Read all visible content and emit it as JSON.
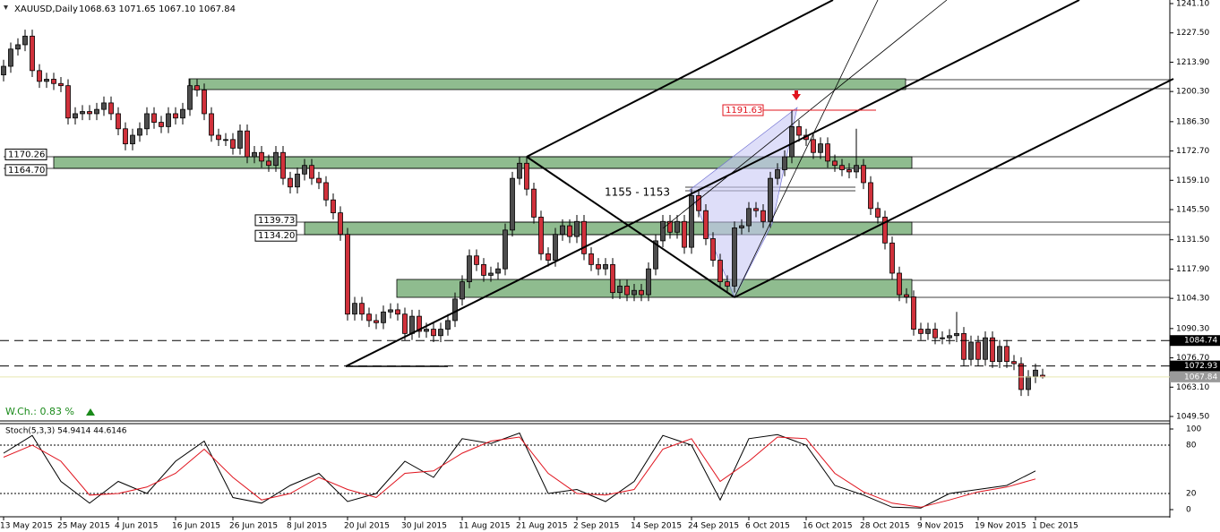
{
  "header": "XAUUSD,Daily",
  "header_quote": "1068.63 1071.65 1067.10 1067.84",
  "change": "W.Ch.: 0.83 %",
  "zone_text": "1155 - 1153",
  "chart_data": [
    {
      "type": "candlestick",
      "categories": [
        "13 May 2015",
        null,
        null,
        null,
        null,
        null,
        null,
        null,
        "25 May 2015",
        null,
        null,
        null,
        null,
        null,
        null,
        null,
        "4 Jun 2015",
        null,
        null,
        null,
        null,
        null,
        null,
        null,
        "16 Jun 2015",
        null,
        null,
        null,
        null,
        null,
        null,
        null,
        "26 Jun 2015",
        null,
        null,
        null,
        null,
        null,
        null,
        null,
        "8 Jul 2015",
        null,
        null,
        null,
        null,
        null,
        null,
        null,
        "20 Jul 2015",
        null,
        null,
        null,
        null,
        null,
        null,
        null,
        "30 Jul 2015",
        null,
        null,
        null,
        null,
        null,
        null,
        null,
        "11 Aug 2015",
        null,
        null,
        null,
        null,
        null,
        null,
        null,
        "21 Aug 2015",
        null,
        null,
        null,
        null,
        null,
        null,
        null,
        "2 Sep 2015",
        null,
        null,
        null,
        null,
        null,
        null,
        null,
        "14 Sep 2015",
        null,
        null,
        null,
        null,
        null,
        null,
        null,
        "24 Sep 2015",
        null,
        null,
        null,
        null,
        null,
        null,
        null,
        "6 Oct 2015",
        null,
        null,
        null,
        null,
        null,
        null,
        null,
        "16 Oct 2015",
        null,
        null,
        null,
        null,
        null,
        null,
        null,
        "28 Oct 2015",
        null,
        null,
        null,
        null,
        null,
        null,
        null,
        "9 Nov 2015",
        null,
        null,
        null,
        null,
        null,
        null,
        null,
        "19 Nov 2015",
        null,
        null,
        null,
        null,
        null,
        null,
        null,
        "1 Dec 2015",
        null
      ],
      "open": [
        1208,
        1212,
        1220,
        1222,
        1226,
        1210,
        1205,
        1206,
        1204,
        1203,
        1188,
        1190,
        1191,
        1190,
        1192,
        1195,
        1190,
        1183,
        1176,
        1180,
        1183,
        1190,
        1186,
        1184,
        1190,
        1188,
        1192,
        1203,
        1201,
        1190,
        1180,
        1178,
        1178,
        1174,
        1182,
        1170,
        1172,
        1168,
        1166,
        1172,
        1160,
        1156,
        1162,
        1166,
        1160,
        1158,
        1150,
        1144,
        1134,
        1097,
        1102,
        1097,
        1094,
        1093,
        1098,
        1099,
        1097,
        1088,
        1096,
        1089,
        1090,
        1087,
        1090,
        1094,
        1104,
        1112,
        1124,
        1120,
        1115,
        1116,
        1118,
        1136,
        1160,
        1167,
        1155,
        1142,
        1125,
        1122,
        1134,
        1138,
        1133,
        1140,
        1125,
        1120,
        1118,
        1120,
        1107,
        1110,
        1106,
        1108,
        1106,
        1118,
        1131,
        1140,
        1135,
        1140,
        1128,
        1152,
        1145,
        1132,
        1122,
        1112,
        1110,
        1137,
        1138,
        1146,
        1145,
        1140,
        1160,
        1164,
        1170,
        1184,
        1180,
        1178,
        1172,
        1176,
        1168,
        1166,
        1164,
        1163,
        1166,
        1158,
        1146,
        1142,
        1130,
        1116,
        1106,
        1105,
        1090,
        1088,
        1090,
        1086,
        1086,
        1087,
        1088,
        1076,
        1084,
        1076,
        1086,
        1075,
        1082,
        1075,
        1074,
        1062,
        1068,
        1068.63
      ],
      "high": [
        1215,
        1223,
        1225,
        1229,
        1229,
        1213,
        1209,
        1209,
        1207,
        1206,
        1193,
        1194,
        1194,
        1195,
        1198,
        1198,
        1193,
        1186,
        1183,
        1186,
        1193,
        1193,
        1189,
        1193,
        1193,
        1195,
        1206,
        1206,
        1204,
        1193,
        1183,
        1181,
        1181,
        1185,
        1185,
        1175,
        1175,
        1171,
        1175,
        1175,
        1163,
        1165,
        1169,
        1169,
        1163,
        1161,
        1153,
        1147,
        1137,
        1105,
        1105,
        1100,
        1097,
        1101,
        1102,
        1102,
        1100,
        1099,
        1099,
        1093,
        1093,
        1093,
        1097,
        1107,
        1115,
        1127,
        1127,
        1123,
        1119,
        1121,
        1139,
        1163,
        1170,
        1170,
        1158,
        1145,
        1128,
        1137,
        1141,
        1141,
        1143,
        1143,
        1128,
        1123,
        1123,
        1123,
        1113,
        1113,
        1111,
        1111,
        1121,
        1134,
        1143,
        1143,
        1143,
        1143,
        1155,
        1155,
        1148,
        1135,
        1125,
        1115,
        1140,
        1141,
        1149,
        1149,
        1148,
        1163,
        1167,
        1173,
        1191.63,
        1187,
        1183,
        1181,
        1179,
        1179,
        1171,
        1169,
        1167,
        1183,
        1169,
        1161,
        1149,
        1145,
        1133,
        1119,
        1109,
        1108,
        1093,
        1093,
        1093,
        1089,
        1090,
        1098,
        1091,
        1087,
        1087,
        1089,
        1089,
        1085,
        1085,
        1078,
        1077,
        1071,
        1074,
        1071.65
      ],
      "low": [
        1205,
        1209,
        1217,
        1219,
        1207,
        1202,
        1202,
        1201,
        1200,
        1185,
        1185,
        1187,
        1187,
        1187,
        1189,
        1187,
        1180,
        1173,
        1173,
        1177,
        1180,
        1183,
        1181,
        1181,
        1185,
        1185,
        1189,
        1198,
        1187,
        1177,
        1175,
        1175,
        1171,
        1171,
        1167,
        1167,
        1165,
        1163,
        1163,
        1157,
        1153,
        1153,
        1159,
        1157,
        1155,
        1147,
        1141,
        1131,
        1094,
        1094,
        1094,
        1091,
        1090,
        1090,
        1095,
        1094,
        1085,
        1085,
        1086,
        1086,
        1084,
        1084,
        1087,
        1091,
        1101,
        1109,
        1117,
        1112,
        1112,
        1113,
        1115,
        1133,
        1157,
        1152,
        1139,
        1122,
        1119,
        1119,
        1131,
        1130,
        1130,
        1122,
        1117,
        1115,
        1115,
        1104,
        1104,
        1103,
        1103,
        1103,
        1103,
        1115,
        1128,
        1132,
        1132,
        1125,
        1125,
        1142,
        1129,
        1119,
        1109,
        1107,
        1107,
        1134,
        1135,
        1142,
        1137,
        1137,
        1157,
        1161,
        1167,
        1177,
        1175,
        1169,
        1169,
        1165,
        1163,
        1161,
        1160,
        1160,
        1155,
        1143,
        1139,
        1127,
        1113,
        1103,
        1102,
        1087,
        1085,
        1085,
        1083,
        1083,
        1083,
        1084,
        1073,
        1073,
        1073,
        1073,
        1072,
        1072,
        1072,
        1071,
        1059,
        1059,
        1065,
        1067.1
      ],
      "close": [
        1212,
        1220,
        1222,
        1226,
        1210,
        1205,
        1206,
        1204,
        1203,
        1188,
        1190,
        1191,
        1190,
        1192,
        1195,
        1190,
        1183,
        1176,
        1180,
        1183,
        1190,
        1186,
        1184,
        1190,
        1188,
        1192,
        1203,
        1201,
        1190,
        1180,
        1178,
        1178,
        1174,
        1182,
        1170,
        1172,
        1168,
        1166,
        1172,
        1160,
        1156,
        1162,
        1166,
        1160,
        1158,
        1150,
        1144,
        1134,
        1097,
        1102,
        1097,
        1094,
        1093,
        1098,
        1099,
        1097,
        1088,
        1096,
        1089,
        1090,
        1087,
        1090,
        1094,
        1104,
        1112,
        1124,
        1120,
        1115,
        1116,
        1118,
        1136,
        1160,
        1167,
        1155,
        1142,
        1125,
        1122,
        1134,
        1138,
        1133,
        1140,
        1125,
        1120,
        1118,
        1120,
        1107,
        1110,
        1106,
        1108,
        1106,
        1118,
        1131,
        1140,
        1135,
        1140,
        1128,
        1152,
        1145,
        1132,
        1122,
        1112,
        1110,
        1137,
        1138,
        1146,
        1145,
        1140,
        1160,
        1164,
        1170,
        1184,
        1180,
        1178,
        1172,
        1176,
        1168,
        1166,
        1164,
        1163,
        1166,
        1158,
        1146,
        1142,
        1130,
        1116,
        1106,
        1105,
        1090,
        1088,
        1090,
        1086,
        1086,
        1087,
        1088,
        1076,
        1084,
        1076,
        1086,
        1075,
        1082,
        1075,
        1074,
        1062,
        1068,
        1071,
        1067.84
      ],
      "up_color": "#4d4d4d",
      "down_color": "#d0313b",
      "ylim": [
        1049.5,
        1241.1
      ],
      "yticks": [
        {
          "value": 1049.5,
          "label": "1049.50"
        },
        {
          "value": 1063.1,
          "label": "1063.10"
        },
        {
          "value": 1076.7,
          "label": "1076.70"
        },
        {
          "value": 1090.3,
          "label": "1090.30"
        },
        {
          "value": 1104.3,
          "label": "1104.30"
        },
        {
          "value": 1117.9,
          "label": "1117.90"
        },
        {
          "value": 1131.5,
          "label": "1131.50"
        },
        {
          "value": 1145.5,
          "label": "1145.50"
        },
        {
          "value": 1159.1,
          "label": "1159.10"
        },
        {
          "value": 1172.7,
          "label": "1172.70"
        },
        {
          "value": 1186.3,
          "label": "1186.30"
        },
        {
          "value": 1200.3,
          "label": "1200.30"
        },
        {
          "value": 1213.9,
          "label": "1213.90"
        },
        {
          "value": 1227.5,
          "label": "1227.50"
        },
        {
          "value": 1241.1,
          "label": "1241.10"
        }
      ],
      "axis_levels": [
        1084.74,
        1072.93,
        1067.84
      ],
      "left_levels": [
        1170.26,
        {
          "value": 1164.7,
          "label": "1164.70"
        },
        1139.73,
        {
          "value": 1134.2,
          "label": "1134.20"
        }
      ],
      "peak_level": 1191.63
    },
    {
      "type": "line",
      "title": "Stoch(5,3,3) 54.9414 44.6146",
      "x": [
        0,
        4,
        8,
        12,
        16,
        20,
        24,
        28,
        32,
        36,
        40,
        44,
        48,
        52,
        56,
        60,
        64,
        68,
        72,
        76,
        80,
        84,
        88,
        92,
        96,
        100,
        104,
        108,
        112,
        116,
        120,
        124,
        128,
        132,
        136,
        140,
        144
      ],
      "series": [
        {
          "color": "#000000",
          "values": [
            70,
            92,
            35,
            8,
            35,
            20,
            60,
            85,
            15,
            8,
            30,
            45,
            10,
            20,
            60,
            40,
            88,
            82,
            95,
            20,
            25,
            10,
            35,
            92,
            80,
            12,
            88,
            93,
            80,
            30,
            18,
            3,
            2,
            20,
            25,
            30,
            48
          ]
        },
        {
          "color": "#e0141e",
          "values": [
            65,
            80,
            60,
            18,
            20,
            28,
            45,
            75,
            40,
            12,
            20,
            40,
            25,
            15,
            45,
            48,
            70,
            85,
            90,
            45,
            20,
            18,
            25,
            75,
            88,
            35,
            60,
            90,
            88,
            45,
            22,
            8,
            3,
            12,
            22,
            28,
            38
          ]
        }
      ],
      "ylim": [
        0,
        100
      ],
      "yticks": [
        0,
        20,
        80,
        100
      ]
    }
  ]
}
